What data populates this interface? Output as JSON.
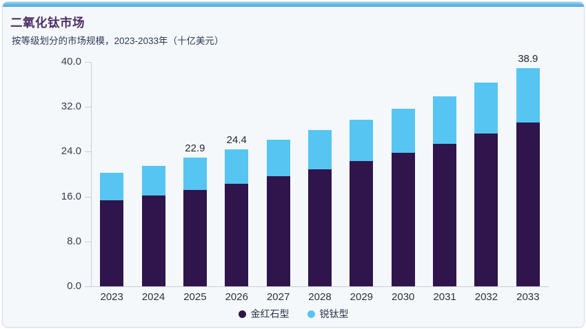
{
  "page": {
    "background": "#ffffff"
  },
  "card": {
    "background": "#f4f8fb",
    "border_color": "#d7dde7",
    "accent_strip_color": "#5cb3e2"
  },
  "header": {
    "title": "二氧化钛市场",
    "subtitle": "按等级划分的市场规模，2023-2033年（十亿美元）",
    "title_color": "#4f2f66",
    "subtitle_color": "#2e3a57"
  },
  "chart_data": {
    "type": "bar",
    "stacked": true,
    "title": "二氧化钛市场",
    "subtitle": "按等级划分的市场规模，2023-2033年（十亿美元）",
    "unit": "十亿美元",
    "categories": [
      "2023",
      "2024",
      "2025",
      "2026",
      "2027",
      "2028",
      "2029",
      "2030",
      "2031",
      "2032",
      "2033"
    ],
    "series": [
      {
        "name": "金红石型",
        "color": "#2f154b",
        "values": [
          15.3,
          16.2,
          17.2,
          18.3,
          19.6,
          20.9,
          22.3,
          23.8,
          25.4,
          27.2,
          29.2
        ]
      },
      {
        "name": "锐钛型",
        "color": "#56c5f2",
        "values": [
          4.9,
          5.3,
          5.7,
          6.1,
          6.5,
          6.9,
          7.4,
          7.9,
          8.5,
          9.1,
          9.7
        ]
      }
    ],
    "totals": [
      20.2,
      21.5,
      22.9,
      24.4,
      26.1,
      27.8,
      29.7,
      31.7,
      33.9,
      36.3,
      38.9
    ],
    "data_labels": {
      "2025": "22.9",
      "2026": "24.4",
      "2033": "38.9"
    },
    "ylim": [
      0,
      40
    ],
    "yticks": [
      {
        "value": 40,
        "label": "40.0"
      },
      {
        "value": 32,
        "label": "32.0"
      },
      {
        "value": 24,
        "label": "24.0"
      },
      {
        "value": 16,
        "label": "16.0"
      },
      {
        "value": 8,
        "label": "8.0"
      },
      {
        "value": 0,
        "label": "0.0"
      }
    ],
    "grid": false,
    "legend_position": "bottom",
    "axis_color": "#c9ced6",
    "tick_label_color": "#3a3b45",
    "data_label_color": "#26262e"
  }
}
